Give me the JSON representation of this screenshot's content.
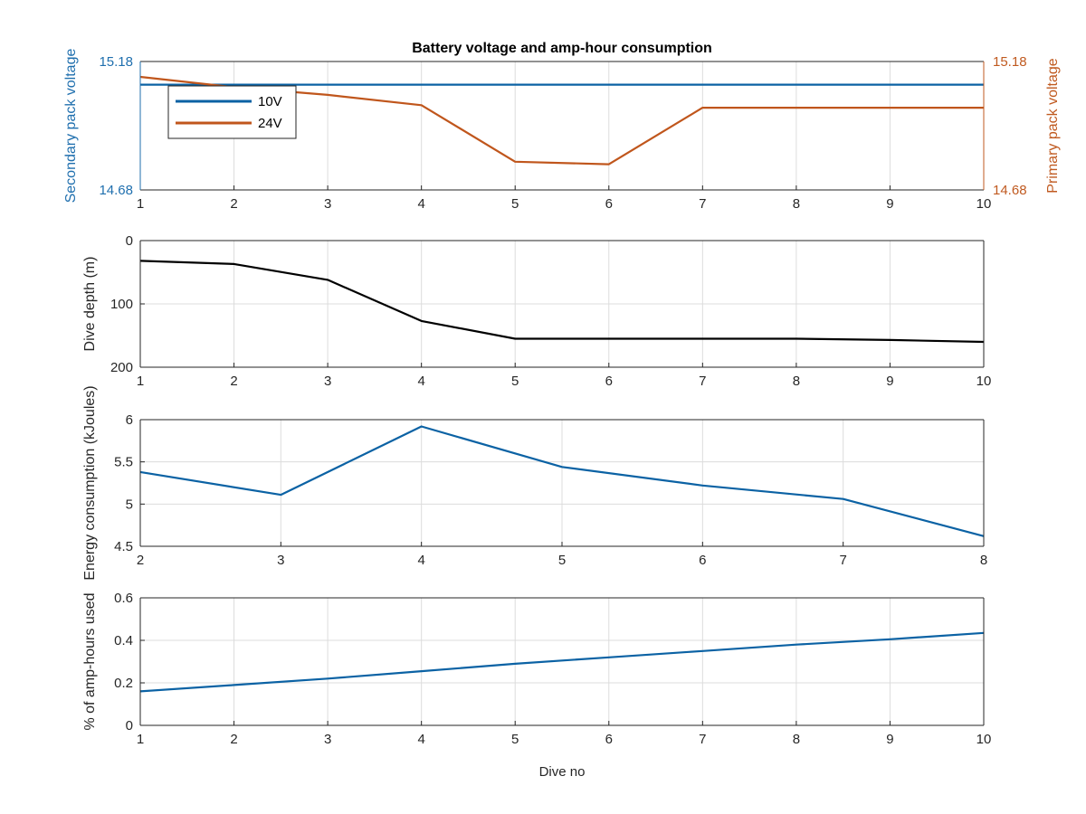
{
  "chart_data": [
    {
      "type": "line",
      "title": "Battery voltage and amp-hour consumption",
      "xlabel": "",
      "x": [
        1,
        2,
        3,
        4,
        5,
        6,
        7,
        8,
        9,
        10
      ],
      "xlim": [
        1,
        10
      ],
      "xticks": [
        "1",
        "2",
        "3",
        "4",
        "5",
        "6",
        "7",
        "8",
        "9",
        "10"
      ],
      "ylabel": "Secondary pack voltage",
      "ylim": [
        14.68,
        15.18
      ],
      "yticks": [
        "14.68",
        "15.18"
      ],
      "ylabel_right": "Primary pack voltage",
      "ylim_right": [
        14.68,
        15.18
      ],
      "yticks_right": [
        "14.68",
        "15.18"
      ],
      "grid": true,
      "legend_position": "top-left",
      "colors": {
        "left_axis": "#1f6fae",
        "right_axis": "#c05a20"
      },
      "series": [
        {
          "name": "10V",
          "axis": "left",
          "color": "#0b62a4",
          "x": [
            1,
            10
          ],
          "y": [
            15.09,
            15.09
          ]
        },
        {
          "name": "24V",
          "axis": "right",
          "color": "#c0561c",
          "x": [
            1,
            2,
            3,
            4,
            5,
            6,
            7,
            8,
            9,
            10
          ],
          "y": [
            15.12,
            15.08,
            15.05,
            15.01,
            14.79,
            14.78,
            15.0,
            15.0,
            15.0,
            15.0
          ]
        }
      ]
    },
    {
      "type": "line",
      "xlabel": "",
      "ylabel": "Dive depth (m)",
      "xlim": [
        1,
        10
      ],
      "xticks": [
        "1",
        "2",
        "3",
        "4",
        "5",
        "6",
        "7",
        "8",
        "9",
        "10"
      ],
      "ylim": [
        0,
        200
      ],
      "y_reversed": true,
      "yticks": [
        "0",
        "100",
        "200"
      ],
      "grid": true,
      "series": [
        {
          "color": "#000000",
          "x": [
            1,
            2,
            3,
            4,
            5,
            6,
            7,
            8,
            9,
            10
          ],
          "y": [
            32,
            37,
            62,
            127,
            155,
            155,
            155,
            155,
            157,
            160
          ]
        }
      ]
    },
    {
      "type": "line",
      "xlabel": "",
      "ylabel": "Energy consumption (kJoules)",
      "xlim": [
        2,
        8
      ],
      "xticks": [
        "2",
        "3",
        "4",
        "5",
        "6",
        "7",
        "8"
      ],
      "ylim": [
        4.5,
        6
      ],
      "yticks": [
        "4.5",
        "5",
        "5.5",
        "6"
      ],
      "grid": true,
      "series": [
        {
          "color": "#0b62a4",
          "x": [
            2,
            3,
            4,
            5,
            6,
            7,
            8
          ],
          "y": [
            5.38,
            5.11,
            5.92,
            5.44,
            5.22,
            5.06,
            4.62
          ]
        }
      ]
    },
    {
      "type": "line",
      "xlabel": "Dive no",
      "ylabel": "% of amp-hours used",
      "xlim": [
        1,
        10
      ],
      "xticks": [
        "1",
        "2",
        "3",
        "4",
        "5",
        "6",
        "7",
        "8",
        "9",
        "10"
      ],
      "ylim": [
        0,
        0.6
      ],
      "yticks": [
        "0",
        "0.2",
        "0.4",
        "0.6"
      ],
      "grid": true,
      "series": [
        {
          "color": "#0b62a4",
          "x": [
            1,
            2,
            3,
            4,
            5,
            6,
            7,
            8,
            9,
            10
          ],
          "y": [
            0.16,
            0.19,
            0.22,
            0.255,
            0.29,
            0.32,
            0.35,
            0.38,
            0.405,
            0.435
          ]
        }
      ]
    }
  ]
}
